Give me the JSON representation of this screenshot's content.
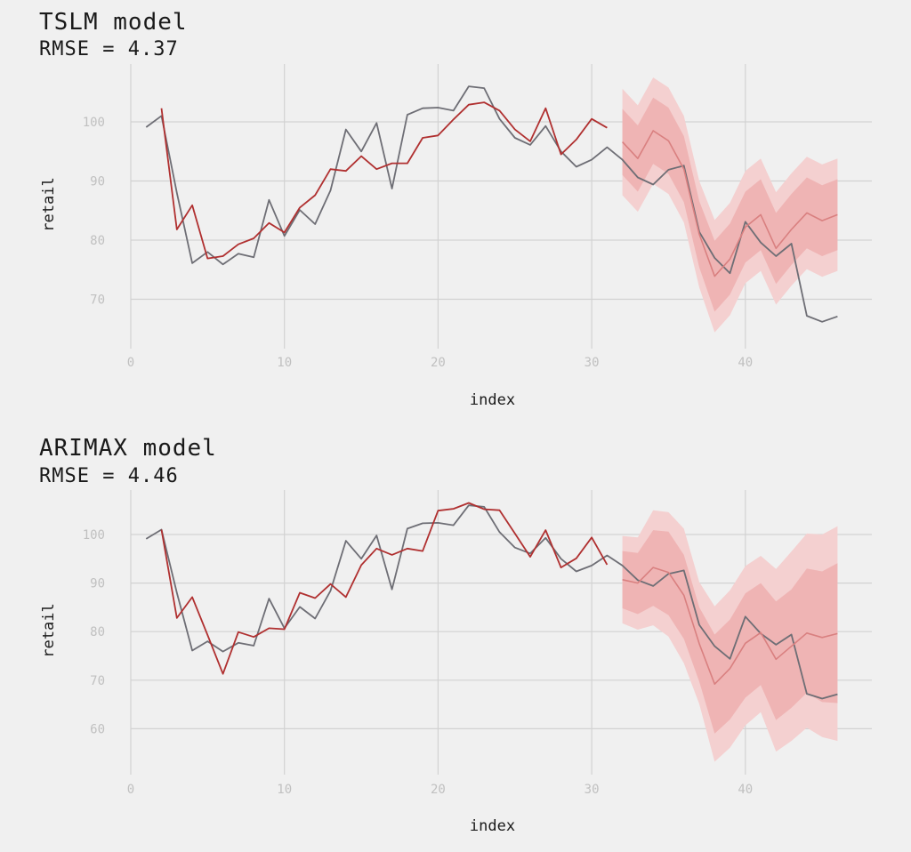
{
  "chart_data": [
    {
      "type": "line",
      "title": "TSLM model",
      "subtitle": "RMSE = 4.37",
      "xlabel": "index",
      "ylabel": "retail",
      "xlim": [
        0,
        48
      ],
      "ylim": [
        62,
        108
      ],
      "x_ticks": [
        0,
        10,
        20,
        30,
        40
      ],
      "y_ticks": [
        70,
        80,
        90,
        100
      ],
      "grid": true,
      "colors": {
        "actual": "#6e6e75",
        "fitted": "#b03030",
        "forecast": "#d98080",
        "band80": "#efb4b4",
        "band95": "#f4d0d0",
        "grid": "#d2d2d2",
        "background": "#f0f0f0"
      },
      "series": [
        {
          "role": "actual",
          "x": [
            1,
            2,
            3,
            4,
            5,
            6,
            7,
            8,
            9,
            10,
            11,
            12,
            13,
            14,
            15,
            16,
            17,
            18,
            19,
            20,
            21,
            22,
            23,
            24,
            25,
            26,
            27,
            28,
            29,
            30,
            31,
            32,
            33,
            34,
            35,
            36,
            37,
            38,
            39,
            40,
            41,
            42,
            43,
            44,
            45,
            46
          ],
          "values": [
            99.1,
            101.0,
            88.0,
            76.1,
            78.0,
            75.9,
            77.7,
            77.1,
            86.8,
            80.7,
            85.1,
            82.7,
            88.4,
            98.7,
            95.0,
            99.8,
            88.7,
            101.2,
            102.3,
            102.4,
            101.9,
            106.0,
            105.7,
            100.5,
            97.3,
            96.1,
            99.3,
            95.0,
            92.4,
            93.6,
            95.7,
            93.6,
            90.6,
            89.4,
            91.9,
            92.6,
            81.4,
            77.0,
            74.4,
            83.1,
            79.6,
            77.3,
            79.4,
            67.2,
            66.2,
            67.1
          ]
        },
        {
          "role": "fitted",
          "x": [
            2,
            3,
            4,
            5,
            6,
            7,
            8,
            9,
            10,
            11,
            12,
            13,
            14,
            15,
            16,
            17,
            18,
            19,
            20,
            21,
            22,
            23,
            24,
            25,
            26,
            27,
            28,
            29,
            30,
            31
          ],
          "values": [
            102.3,
            81.8,
            85.9,
            76.9,
            77.3,
            79.3,
            80.3,
            82.9,
            81.3,
            85.5,
            87.6,
            92.0,
            91.7,
            94.2,
            92.0,
            93.0,
            93.0,
            97.3,
            97.7,
            100.4,
            102.9,
            103.3,
            101.9,
            98.7,
            96.7,
            102.3,
            94.5,
            97.0,
            100.5,
            99.0
          ]
        },
        {
          "role": "forecast",
          "x": [
            32,
            33,
            34,
            35,
            36,
            37,
            38,
            39,
            40,
            41,
            42,
            43,
            44,
            45,
            46
          ],
          "values": [
            96.6,
            93.8,
            98.5,
            96.8,
            92.0,
            81.0,
            73.9,
            76.8,
            82.2,
            84.3,
            78.6,
            81.8,
            84.6,
            83.3,
            84.3
          ]
        }
      ],
      "band80": {
        "lower": [
          91.0,
          88.2,
          92.9,
          91.2,
          86.4,
          75.4,
          67.9,
          70.8,
          76.2,
          78.3,
          72.6,
          75.8,
          78.6,
          77.3,
          78.3
        ],
        "upper": [
          102.2,
          99.4,
          104.1,
          102.4,
          97.6,
          86.6,
          79.9,
          82.8,
          88.2,
          90.3,
          84.6,
          87.8,
          90.6,
          89.3,
          90.3
        ]
      },
      "band95": {
        "lower": [
          87.6,
          84.8,
          89.5,
          87.8,
          83.0,
          72.0,
          64.4,
          67.3,
          72.7,
          74.8,
          69.1,
          72.3,
          75.1,
          73.8,
          74.8
        ],
        "upper": [
          105.6,
          102.8,
          107.5,
          105.8,
          101.0,
          90.0,
          83.4,
          86.3,
          91.7,
          93.8,
          88.1,
          91.3,
          94.1,
          92.8,
          93.8
        ]
      }
    },
    {
      "type": "line",
      "title": "ARIMAX model",
      "subtitle": "RMSE = 4.46",
      "xlabel": "index",
      "ylabel": "retail",
      "xlim": [
        0,
        48
      ],
      "ylim": [
        50,
        109
      ],
      "x_ticks": [
        0,
        10,
        20,
        30,
        40
      ],
      "y_ticks": [
        60,
        70,
        80,
        90,
        100
      ],
      "grid": true,
      "colors": {
        "actual": "#6e6e75",
        "fitted": "#b03030",
        "forecast": "#d98080",
        "band80": "#efb4b4",
        "band95": "#f4d0d0",
        "grid": "#d2d2d2",
        "background": "#f0f0f0"
      },
      "series": [
        {
          "role": "actual",
          "x": [
            1,
            2,
            3,
            4,
            5,
            6,
            7,
            8,
            9,
            10,
            11,
            12,
            13,
            14,
            15,
            16,
            17,
            18,
            19,
            20,
            21,
            22,
            23,
            24,
            25,
            26,
            27,
            28,
            29,
            30,
            31,
            32,
            33,
            34,
            35,
            36,
            37,
            38,
            39,
            40,
            41,
            42,
            43,
            44,
            45,
            46
          ],
          "values": [
            99.1,
            101.0,
            88.0,
            76.1,
            78.0,
            75.9,
            77.7,
            77.1,
            86.8,
            80.7,
            85.1,
            82.7,
            88.4,
            98.7,
            95.0,
            99.8,
            88.7,
            101.2,
            102.3,
            102.4,
            101.9,
            106.0,
            105.7,
            100.5,
            97.3,
            96.1,
            99.3,
            95.0,
            92.4,
            93.6,
            95.7,
            93.6,
            90.6,
            89.4,
            91.9,
            92.6,
            81.4,
            77.0,
            74.4,
            83.1,
            79.6,
            77.3,
            79.4,
            67.2,
            66.2,
            67.1
          ]
        },
        {
          "role": "fitted",
          "x": [
            2,
            3,
            4,
            5,
            6,
            7,
            8,
            9,
            10,
            11,
            12,
            13,
            14,
            15,
            16,
            17,
            18,
            19,
            20,
            21,
            22,
            23,
            24,
            25,
            26,
            27,
            28,
            29,
            30,
            31
          ],
          "values": [
            101.0,
            82.8,
            87.1,
            79.3,
            71.3,
            79.9,
            78.9,
            80.7,
            80.5,
            88.0,
            86.9,
            89.8,
            87.1,
            93.7,
            97.1,
            95.8,
            97.1,
            96.6,
            104.9,
            105.3,
            106.5,
            105.2,
            105.0,
            100.2,
            95.4,
            100.9,
            93.2,
            95.1,
            99.4,
            93.8
          ]
        },
        {
          "role": "forecast",
          "x": [
            32,
            33,
            34,
            35,
            36,
            37,
            38,
            39,
            40,
            41,
            42,
            43,
            44,
            45,
            46
          ],
          "values": [
            90.7,
            90.0,
            93.2,
            92.2,
            87.5,
            77.5,
            69.2,
            72.4,
            77.6,
            79.8,
            74.3,
            77.0,
            79.7,
            78.8,
            79.6
          ]
        },
        {
          "role": "legacy",
          "x": [],
          "values": []
        }
      ],
      "band80": {
        "lower": [
          84.8,
          83.6,
          85.3,
          83.4,
          78.5,
          69.7,
          59.0,
          61.9,
          66.4,
          69.0,
          61.8,
          64.3,
          67.4,
          65.5,
          65.3
        ],
        "upper": [
          96.6,
          96.2,
          100.9,
          100.6,
          95.8,
          85.0,
          79.4,
          82.5,
          87.9,
          90.0,
          86.2,
          88.7,
          93.0,
          92.4,
          94.1
        ]
      },
      "band95": {
        "lower": [
          81.7,
          80.4,
          81.3,
          79.0,
          73.5,
          65.1,
          53.2,
          56.1,
          60.7,
          63.4,
          55.3,
          57.5,
          60.2,
          58.3,
          57.5
        ],
        "upper": [
          99.7,
          99.4,
          105.0,
          104.6,
          101.2,
          90.2,
          85.2,
          88.5,
          93.5,
          95.6,
          92.9,
          96.5,
          100.2,
          100.0,
          101.7
        ]
      }
    }
  ]
}
